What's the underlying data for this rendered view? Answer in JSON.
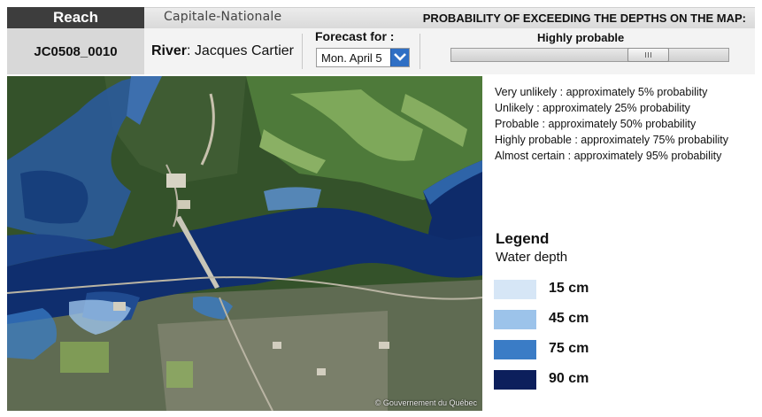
{
  "header": {
    "reach_label": "Reach",
    "region": "Capitale-Nationale",
    "probability_title": "PROBABILITY OF EXCEEDING THE DEPTHS ON THE MAP:"
  },
  "info": {
    "reach_id": "JC0508_0010",
    "river_label": "River",
    "river_value": "Jacques Cartier",
    "forecast_label": "Forecast for :",
    "forecast_value": "Mon. April 5",
    "probability_level": "Highly probable",
    "probability_slider_fraction": 0.75
  },
  "probabilities": [
    "Very unlikely : approximately 5% probability",
    "Unlikely : approximately 25% probability",
    "Probable : approximately 50% probability",
    "Highly probable : approximately 75% probability",
    "Almost certain : approximately 95% probability"
  ],
  "legend": {
    "title": "Legend",
    "subtitle": "Water depth",
    "items": [
      {
        "label": "15 cm",
        "color": "#d6e6f6"
      },
      {
        "label": "45 cm",
        "color": "#9cc3ea"
      },
      {
        "label": "75 cm",
        "color": "#3a7cc6"
      },
      {
        "label": "90 cm",
        "color": "#0c1f5c"
      }
    ]
  },
  "map": {
    "credit": "© Gouvernement du Québec"
  },
  "colors": {
    "header_dark": "#3d3d3d",
    "accent_blue": "#2f6fc4"
  }
}
